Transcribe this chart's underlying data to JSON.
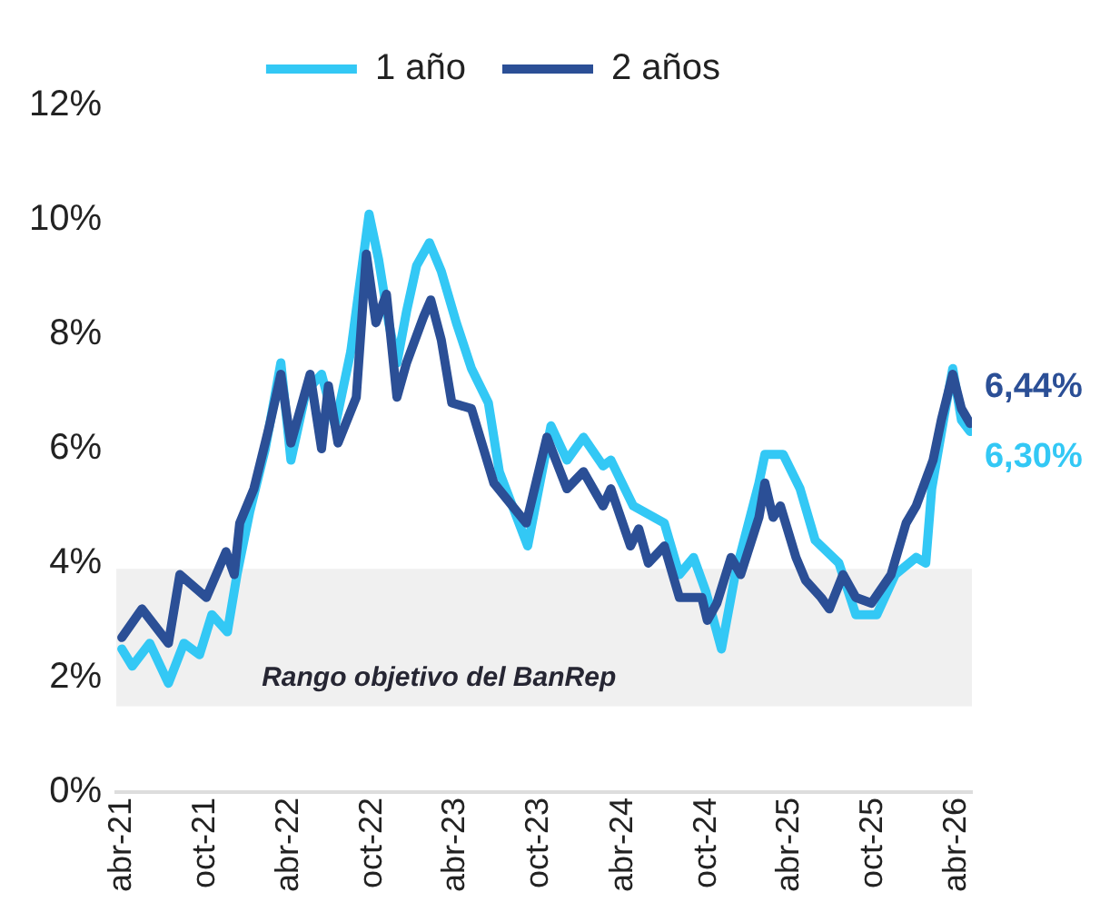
{
  "chart_data": {
    "type": "line",
    "series": [
      {
        "name": "1 año",
        "color": "#33c8f5",
        "x": [
          "2021-04-01",
          "2021-04-24",
          "2021-06-01",
          "2021-07-12",
          "2021-08-15",
          "2021-09-18",
          "2021-10-15",
          "2021-11-18",
          "2021-12-09",
          "2022-01-06",
          "2022-02-09",
          "2022-03-15",
          "2022-04-06",
          "2022-05-09",
          "2022-06-12",
          "2022-07-12",
          "2022-08-15",
          "2022-09-24",
          "2022-10-15",
          "2022-11-06",
          "2022-11-24",
          "2022-12-15",
          "2023-01-06",
          "2023-02-03",
          "2023-03-01",
          "2023-04-03",
          "2023-05-06",
          "2023-06-12",
          "2023-07-06",
          "2023-09-06",
          "2023-10-27",
          "2023-12-01",
          "2024-01-06",
          "2024-02-18",
          "2024-03-06",
          "2024-04-24",
          "2024-07-01",
          "2024-08-03",
          "2024-09-03",
          "2024-09-30",
          "2024-11-03",
          "2024-12-03",
          "2025-01-24",
          "2025-02-06",
          "2025-03-18",
          "2025-04-24",
          "2025-05-27",
          "2025-07-18",
          "2025-08-24",
          "2025-10-09",
          "2025-11-18",
          "2026-01-03",
          "2026-01-24",
          "2026-02-06",
          "2026-03-06",
          "2026-03-24",
          "2026-04-12",
          "2026-05-01"
        ],
        "values": [
          2.5,
          2.2,
          2.6,
          1.9,
          2.6,
          2.4,
          3.1,
          2.8,
          3.8,
          4.9,
          6.0,
          7.5,
          5.8,
          7.0,
          7.3,
          6.4,
          7.7,
          10.1,
          9.3,
          8.2,
          7.5,
          8.4,
          9.2,
          9.6,
          9.1,
          8.2,
          7.4,
          6.8,
          5.6,
          4.3,
          6.4,
          5.8,
          6.2,
          5.7,
          5.8,
          5.0,
          4.7,
          3.8,
          4.1,
          3.5,
          2.5,
          3.8,
          5.4,
          5.9,
          5.9,
          5.3,
          4.4,
          4.0,
          3.1,
          3.1,
          3.8,
          4.1,
          4.0,
          5.3,
          6.6,
          7.4,
          6.5,
          6.3
        ],
        "value_labels": [
          null,
          null,
          null,
          null,
          null,
          null,
          null,
          null,
          null,
          null,
          null,
          null,
          null,
          null,
          null,
          null,
          null,
          null,
          null,
          null,
          null,
          null,
          null,
          null,
          null,
          null,
          null,
          null,
          null,
          null,
          null,
          null,
          null,
          null,
          null,
          null,
          null,
          null,
          null,
          null,
          null,
          null,
          null,
          null,
          null,
          null,
          null,
          null,
          null,
          null,
          null,
          null,
          null,
          null,
          null,
          null,
          null,
          "6,30%"
        ]
      },
      {
        "name": "2 años",
        "color": "#2b4f96",
        "x": [
          "2021-04-01",
          "2021-05-15",
          "2021-07-12",
          "2021-08-06",
          "2021-10-03",
          "2021-11-15",
          "2021-12-03",
          "2021-12-15",
          "2022-01-15",
          "2022-02-18",
          "2022-03-15",
          "2022-04-06",
          "2022-05-18",
          "2022-06-12",
          "2022-06-27",
          "2022-07-18",
          "2022-08-27",
          "2022-09-18",
          "2022-10-09",
          "2022-11-01",
          "2022-11-24",
          "2022-12-15",
          "2023-01-21",
          "2023-02-06",
          "2023-03-01",
          "2023-03-24",
          "2023-05-06",
          "2023-06-24",
          "2023-09-03",
          "2023-10-18",
          "2023-12-01",
          "2024-01-06",
          "2024-02-18",
          "2024-03-06",
          "2024-04-18",
          "2024-05-06",
          "2024-05-27",
          "2024-07-01",
          "2024-08-03",
          "2024-09-21",
          "2024-10-03",
          "2024-10-24",
          "2024-11-24",
          "2024-12-15",
          "2025-01-24",
          "2025-02-06",
          "2025-02-24",
          "2025-03-12",
          "2025-04-15",
          "2025-05-06",
          "2025-06-09",
          "2025-06-27",
          "2025-07-27",
          "2025-08-24",
          "2025-09-27",
          "2025-11-09",
          "2025-12-12",
          "2026-01-03",
          "2026-02-09",
          "2026-02-27",
          "2026-03-24",
          "2026-04-12",
          "2026-05-01"
        ],
        "values": [
          2.7,
          3.2,
          2.6,
          3.8,
          3.4,
          4.2,
          3.8,
          4.7,
          5.3,
          6.4,
          7.3,
          6.1,
          7.3,
          6.0,
          7.1,
          6.1,
          6.9,
          9.4,
          8.2,
          8.7,
          6.9,
          7.5,
          8.3,
          8.6,
          7.9,
          6.8,
          6.7,
          5.4,
          4.7,
          6.2,
          5.3,
          5.6,
          5.0,
          5.3,
          4.3,
          4.6,
          4.0,
          4.3,
          3.4,
          3.4,
          3.0,
          3.3,
          4.1,
          3.8,
          4.8,
          5.4,
          4.8,
          5.0,
          4.1,
          3.7,
          3.4,
          3.2,
          3.8,
          3.4,
          3.3,
          3.8,
          4.7,
          5.0,
          5.8,
          6.5,
          7.3,
          6.7,
          6.44
        ],
        "value_labels": [
          null,
          null,
          null,
          null,
          null,
          null,
          null,
          null,
          null,
          null,
          null,
          null,
          null,
          null,
          null,
          null,
          null,
          null,
          null,
          null,
          null,
          null,
          null,
          null,
          null,
          null,
          null,
          null,
          null,
          null,
          null,
          null,
          null,
          null,
          null,
          null,
          null,
          null,
          null,
          null,
          null,
          null,
          null,
          null,
          null,
          null,
          null,
          null,
          null,
          null,
          null,
          null,
          null,
          null,
          null,
          null,
          null,
          null,
          null,
          null,
          null,
          null,
          "6,44%"
        ]
      }
    ],
    "ylim": [
      0,
      12
    ],
    "yticks": [
      {
        "value": 0,
        "label": "0%"
      },
      {
        "value": 2,
        "label": "2%"
      },
      {
        "value": 4,
        "label": "4%"
      },
      {
        "value": 6,
        "label": "6%"
      },
      {
        "value": 8,
        "label": "8%"
      },
      {
        "value": 10,
        "label": "10%"
      },
      {
        "value": 12,
        "label": "12%"
      }
    ],
    "xlim": [
      "2021-03-20",
      "2026-05-05"
    ],
    "xticks": [
      {
        "value": "2021-04",
        "label": "abr-21"
      },
      {
        "value": "2021-10",
        "label": "oct-21"
      },
      {
        "value": "2022-04",
        "label": "abr-22"
      },
      {
        "value": "2022-10",
        "label": "oct-22"
      },
      {
        "value": "2023-04",
        "label": "abr-23"
      },
      {
        "value": "2023-10",
        "label": "oct-23"
      },
      {
        "value": "2024-04",
        "label": "abr-24"
      },
      {
        "value": "2024-10",
        "label": "oct-24"
      },
      {
        "value": "2025-04",
        "label": "abr-25"
      },
      {
        "value": "2025-10",
        "label": "oct-25"
      },
      {
        "value": "2026-04",
        "label": "abr-26"
      }
    ],
    "bands": [
      {
        "axis": "y",
        "from": 1.5,
        "to": 3.9,
        "label": "Rango objetivo del BanRep",
        "color": "#f0f0f0"
      }
    ],
    "legend": "top",
    "grid": false,
    "marker": "none",
    "line_style": "solid"
  }
}
